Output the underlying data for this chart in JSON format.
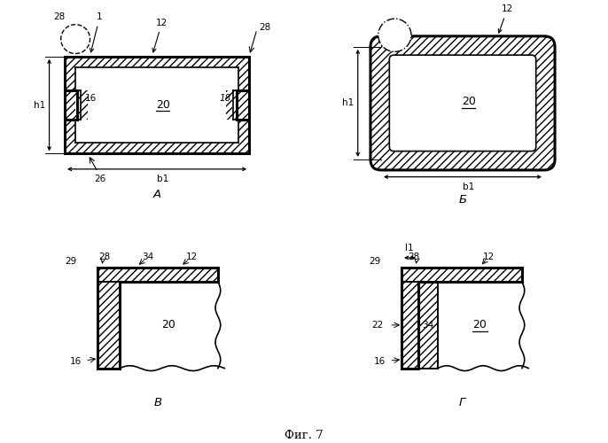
{
  "title": "Фиг. 7",
  "bg": "#ffffff",
  "ec": "#000000",
  "hatch": "////",
  "lw_outer": 2.2,
  "lw_inner": 1.2,
  "lw_dim": 0.9,
  "fs_label": 7.5,
  "fs_sub": 9.5,
  "fs_20": 9.0,
  "sub_A": "А",
  "sub_B": "Б",
  "sub_C": "В",
  "sub_D": "Г"
}
